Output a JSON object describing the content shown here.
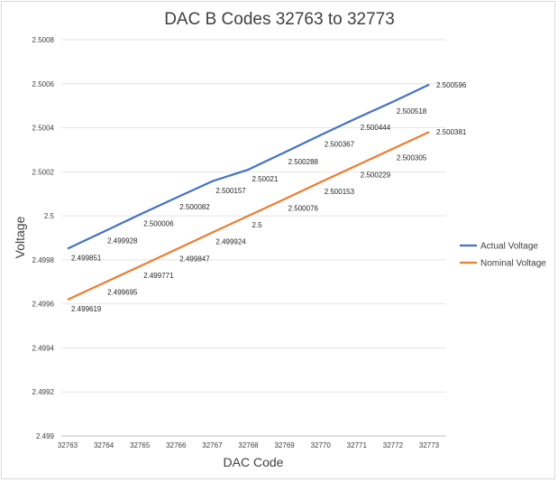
{
  "chart_data": {
    "type": "line",
    "title": "DAC B Codes 32763 to 32773",
    "xlabel": "DAC Code",
    "ylabel": "Voltage",
    "categories": [
      "32763",
      "32764",
      "32765",
      "32766",
      "32767",
      "32768",
      "32769",
      "32770",
      "32771",
      "32772",
      "32773"
    ],
    "ylim": [
      2.499,
      2.5008
    ],
    "yticks": [
      "2.499",
      "2.4992",
      "2.4994",
      "2.4996",
      "2.4998",
      "2.5",
      "2.5002",
      "2.5004",
      "2.5006",
      "2.5008"
    ],
    "ytick_values": [
      2.499,
      2.4992,
      2.4994,
      2.4996,
      2.4998,
      2.5,
      2.5002,
      2.5004,
      2.5006,
      2.5008
    ],
    "grid": true,
    "legend_position": "right",
    "series": [
      {
        "name": "Actual Voltage",
        "color": "#4472c4",
        "values": [
          2.499851,
          2.499928,
          2.500006,
          2.500082,
          2.500157,
          2.50021,
          2.500288,
          2.500367,
          2.500444,
          2.500518,
          2.500596
        ],
        "labels": [
          "2.499851",
          "2.499928",
          "2.500006",
          "2.500082",
          "2.500157",
          "2.50021",
          "2.500288",
          "2.500367",
          "2.500444",
          "2.500518",
          "2.500596"
        ]
      },
      {
        "name": "Nominal Voltage",
        "color": "#ed7d31",
        "values": [
          2.499619,
          2.499695,
          2.499771,
          2.499847,
          2.499924,
          2.5,
          2.500076,
          2.500153,
          2.500229,
          2.500305,
          2.500381
        ],
        "labels": [
          "2.499619",
          "2.499695",
          "2.499771",
          "2.499847",
          "2.499924",
          "2.5",
          "2.500076",
          "2.500153",
          "2.500229",
          "2.500305",
          "2.500381"
        ]
      }
    ]
  }
}
